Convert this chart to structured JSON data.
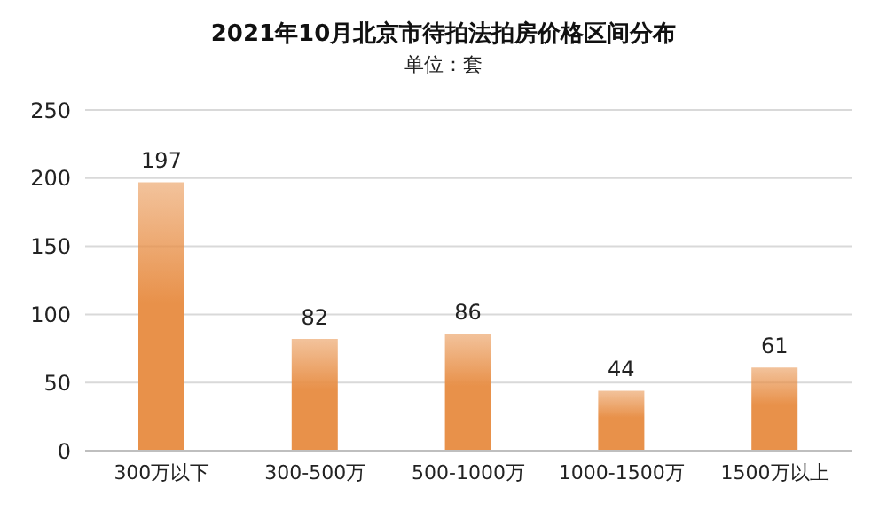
{
  "chart_data": {
    "type": "bar",
    "title": "2021年10月北京市待拍法拍房价格区间分布",
    "subtitle": "单位：套",
    "categories": [
      "300万以下",
      "300-500万",
      "500-1000万",
      "1000-1500万",
      "1500万以上"
    ],
    "values": [
      197,
      82,
      86,
      44,
      61
    ],
    "color": "#e8914a",
    "ylim": [
      0,
      250
    ],
    "yticks": [
      0,
      50,
      100,
      150,
      200,
      250
    ],
    "grid": "y",
    "data_labels": true
  }
}
